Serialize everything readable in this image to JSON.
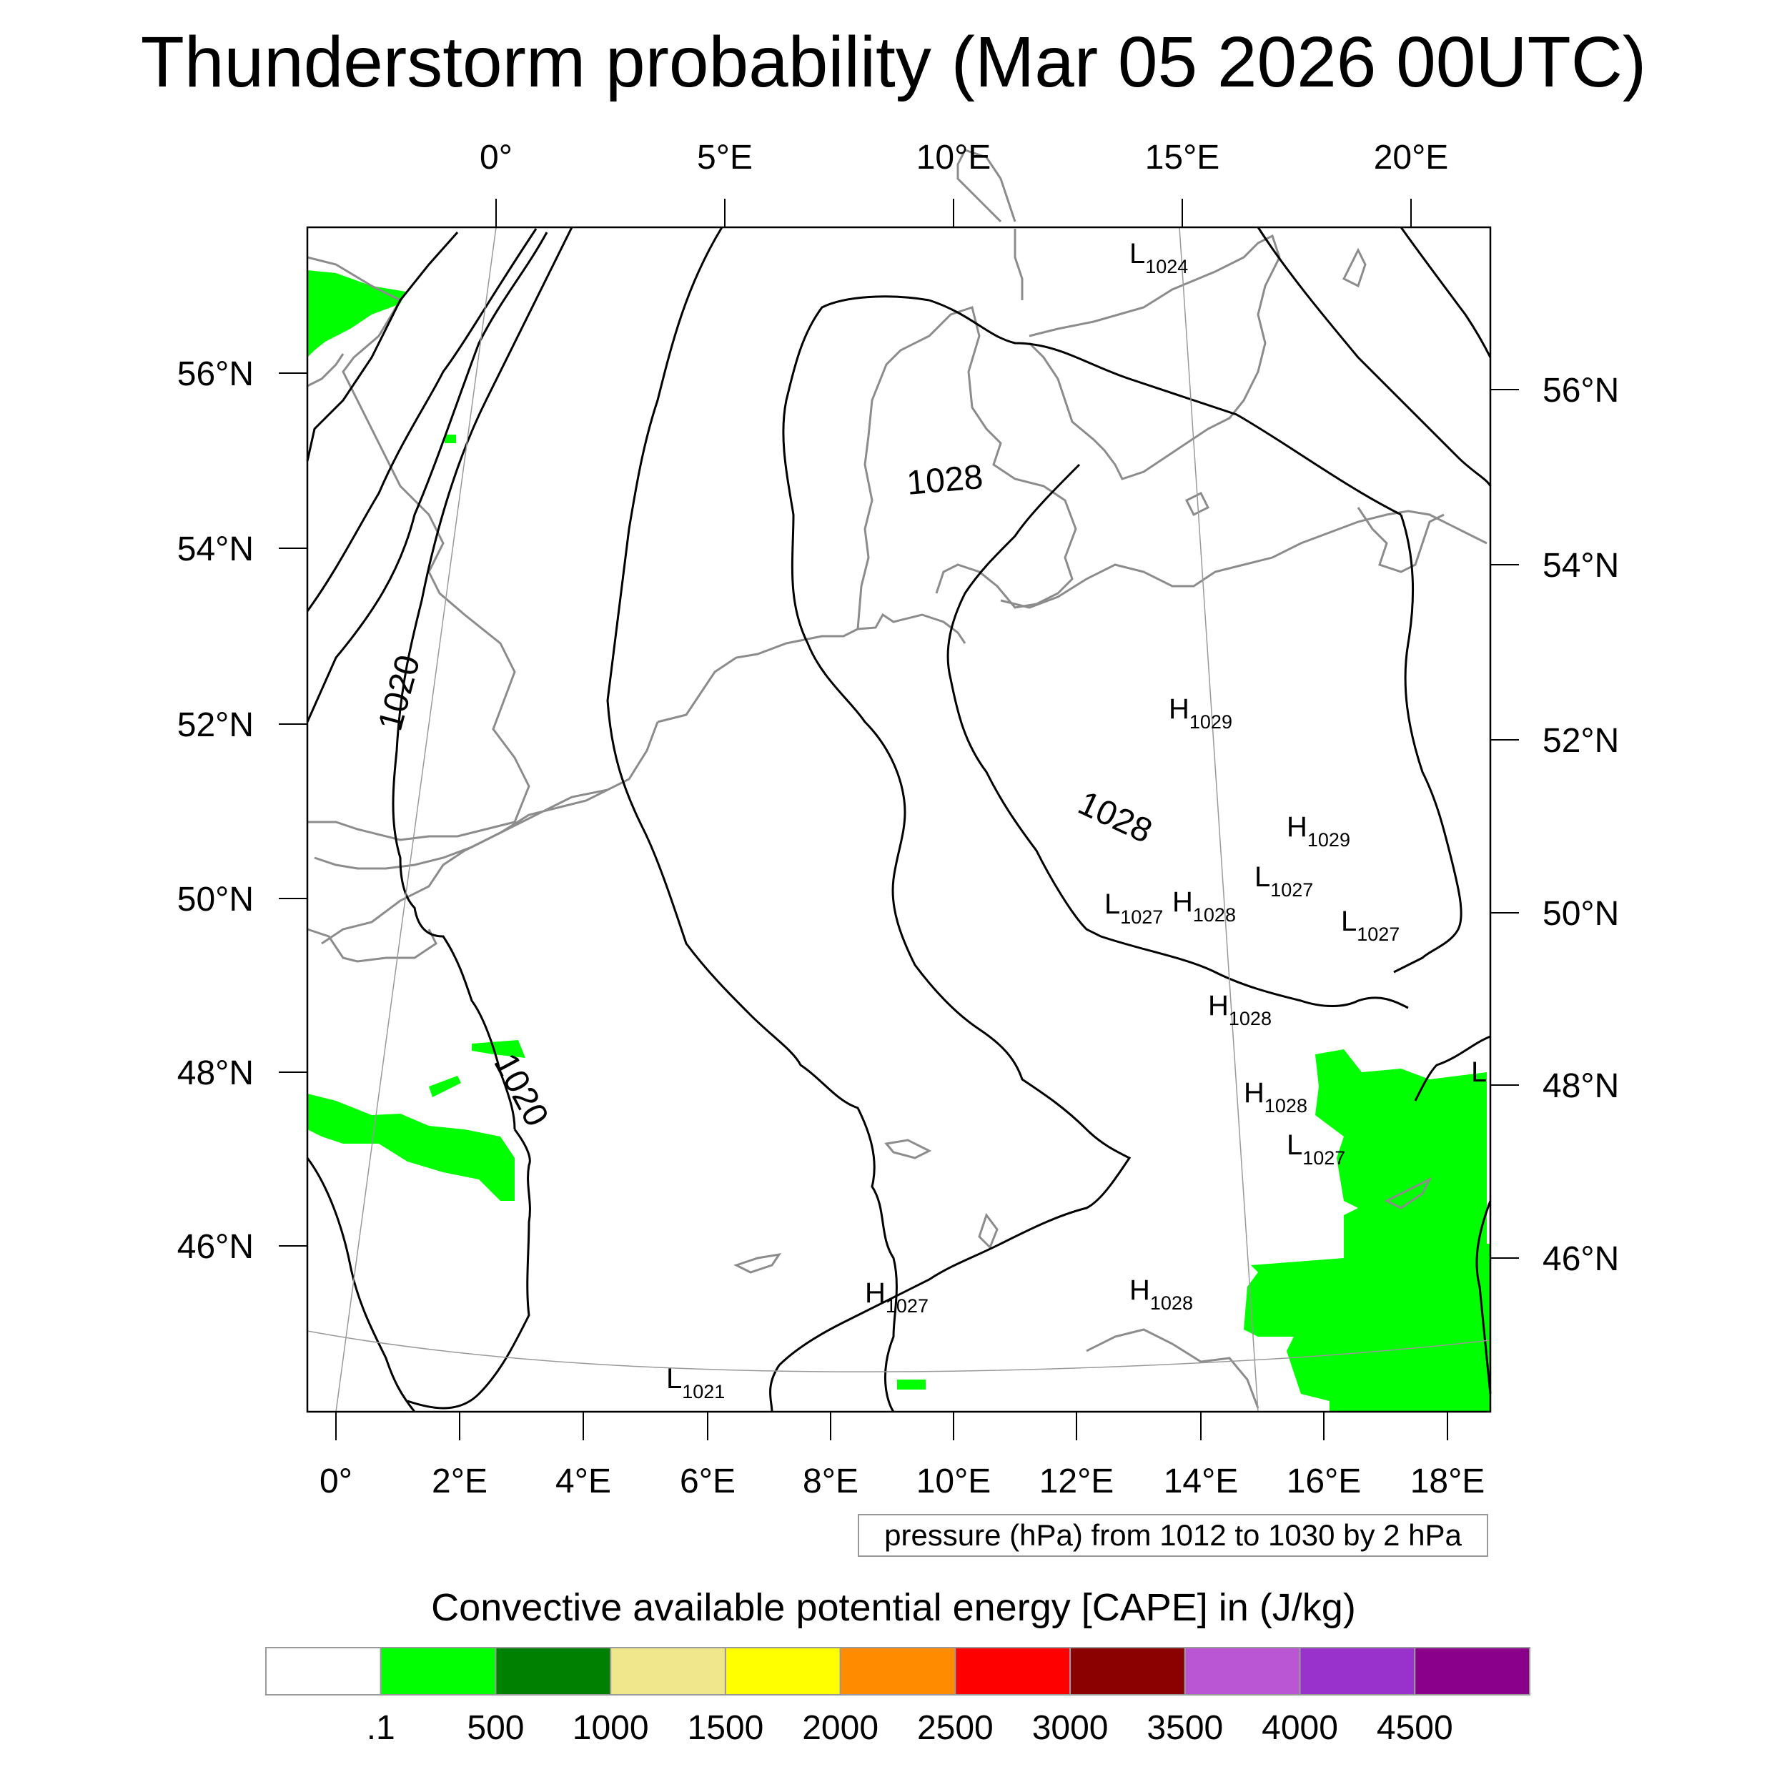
{
  "title": "Thunderstorm probability (Mar 05 2026 00UTC)",
  "top_lon_labels": [
    "0°",
    "5°E",
    "10°E",
    "15°E",
    "20°E"
  ],
  "bottom_lon_labels": [
    "0°",
    "2°E",
    "4°E",
    "6°E",
    "8°E",
    "10°E",
    "12°E",
    "14°E",
    "16°E",
    "18°E"
  ],
  "left_lat_labels": [
    "56°N",
    "54°N",
    "52°N",
    "50°N",
    "48°N",
    "46°N"
  ],
  "right_lat_labels": [
    "56°N",
    "54°N",
    "52°N",
    "50°N",
    "48°N",
    "46°N"
  ],
  "isobar_labels": [
    "1020",
    "1028",
    "1028",
    "1020"
  ],
  "pressure_note": "pressure (hPa) from 1012 to 1030 by 2 hPa",
  "pressure_centers": [
    {
      "type": "L",
      "value": "1024"
    },
    {
      "type": "H",
      "value": "1029"
    },
    {
      "type": "H",
      "value": "1029"
    },
    {
      "type": "L",
      "value": "1027"
    },
    {
      "type": "L",
      "value": "1027"
    },
    {
      "type": "H",
      "value": "1028"
    },
    {
      "type": "L",
      "value": "1027"
    },
    {
      "type": "H",
      "value": "1028"
    },
    {
      "type": "H",
      "value": "1028"
    },
    {
      "type": "L",
      "value": "1027"
    },
    {
      "type": "L",
      "value": ""
    },
    {
      "type": "H",
      "value": "1027"
    },
    {
      "type": "H",
      "value": "1028"
    },
    {
      "type": "L",
      "value": "1021"
    }
  ],
  "legend": {
    "title": "Convective available potential energy [CAPE] in (J/kg)",
    "colors": [
      "#ffffff",
      "#00ff00",
      "#008000",
      "#f0e68c",
      "#ffff00",
      "#ff8c00",
      "#ff0000",
      "#8b0000",
      "#ba55d3",
      "#9932cc",
      "#8b008b"
    ],
    "tick_labels": [
      ".1",
      "500",
      "1000",
      "1500",
      "2000",
      "2500",
      "3000",
      "3500",
      "4000",
      "4500"
    ]
  }
}
